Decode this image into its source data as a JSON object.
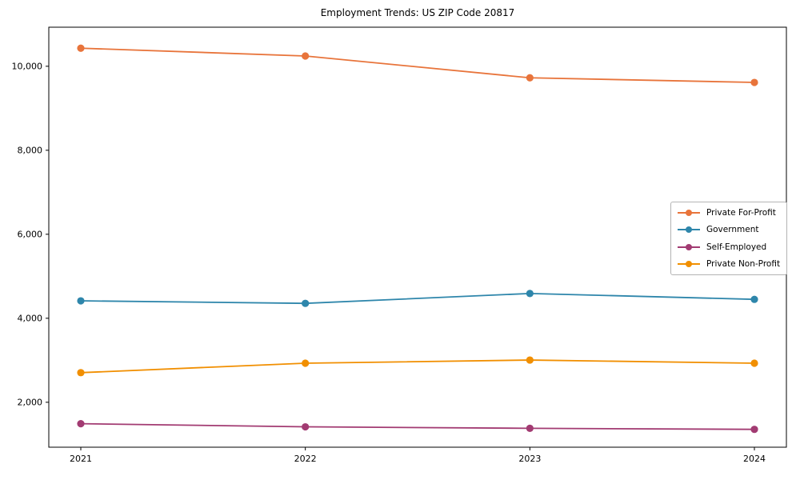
{
  "chart_data": {
    "type": "line",
    "title": "Employment Trends: US ZIP Code 20817",
    "categories": [
      "2021",
      "2022",
      "2023",
      "2024"
    ],
    "series": [
      {
        "name": "Private For-Profit",
        "color": "#E8743B",
        "values": [
          10430,
          10245,
          9725,
          9615
        ]
      },
      {
        "name": "Government",
        "color": "#2E86AB",
        "values": [
          4415,
          4355,
          4590,
          4450
        ]
      },
      {
        "name": "Self-Employed",
        "color": "#A23B72",
        "values": [
          1490,
          1415,
          1380,
          1355
        ]
      },
      {
        "name": "Private Non-Profit",
        "color": "#F18F01",
        "values": [
          2705,
          2930,
          3005,
          2930
        ]
      }
    ],
    "xlabel": "",
    "ylabel": "",
    "ylim": [
      930,
      10930
    ],
    "yticks": [
      2000,
      4000,
      6000,
      8000,
      10000
    ],
    "ytick_labels": [
      "2,000",
      "4,000",
      "6,000",
      "8,000",
      "10,000"
    ],
    "legend_position": "center right",
    "grid": false,
    "marker": "o",
    "axis_color": "#000000"
  }
}
